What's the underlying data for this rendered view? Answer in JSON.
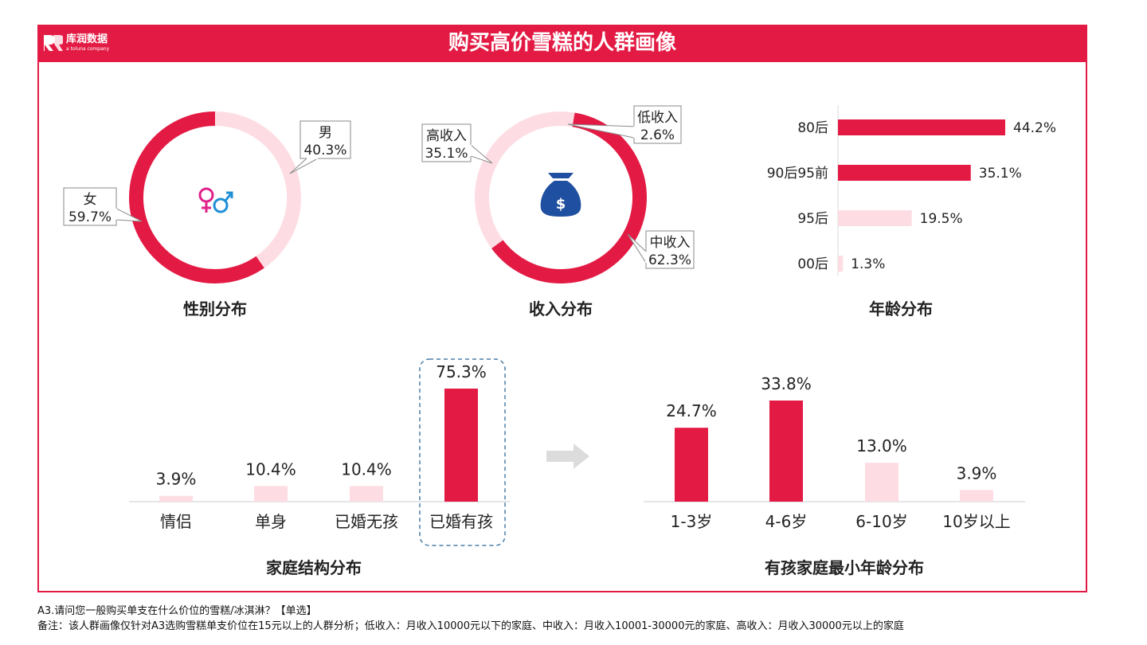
{
  "header": {
    "title": "购买高价雪糕的人群画像",
    "logo_name": "库润数据",
    "logo_sub": "a toluna company"
  },
  "colors": {
    "accent": "#e31b44",
    "light": "#fddde3",
    "callout_border": "#8a8a8a",
    "dash_border": "#4a7fa8",
    "icon_gender_female": "#e0218a",
    "icon_gender_male": "#1f8fd6",
    "icon_money": "#1f4fa0"
  },
  "icons": {
    "gender": "gender-icon",
    "money": "money-bag-icon",
    "arrow": "arrow-right-icon"
  },
  "chart_data": [
    {
      "type": "pie",
      "title": "性别分布",
      "slices": [
        {
          "label": "男",
          "value": 40.3,
          "display": "40.3%",
          "color": "#fddde3"
        },
        {
          "label": "女",
          "value": 59.7,
          "display": "59.7%",
          "color": "#e31b44"
        }
      ]
    },
    {
      "type": "pie",
      "title": "收入分布",
      "slices": [
        {
          "label": "低收入",
          "value": 2.6,
          "display": "2.6%",
          "color": "#fddde3"
        },
        {
          "label": "中收入",
          "value": 62.3,
          "display": "62.3%",
          "color": "#e31b44"
        },
        {
          "label": "高收入",
          "value": 35.1,
          "display": "35.1%",
          "color": "#fddde3"
        }
      ]
    },
    {
      "type": "bar",
      "orientation": "horizontal",
      "title": "年龄分布",
      "categories": [
        "80后",
        "90后95前",
        "95后",
        "00后"
      ],
      "values": [
        44.2,
        35.1,
        19.5,
        1.3
      ],
      "labels": [
        "44.2%",
        "35.1%",
        "19.5%",
        "1.3%"
      ],
      "colors": [
        "#e31b44",
        "#e31b44",
        "#fddde3",
        "#fddde3"
      ]
    },
    {
      "type": "bar",
      "title": "家庭结构分布",
      "categories": [
        "情侣",
        "单身",
        "已婚无孩",
        "已婚有孩"
      ],
      "values": [
        3.9,
        10.4,
        10.4,
        75.3
      ],
      "labels": [
        "3.9%",
        "10.4%",
        "10.4%",
        "75.3%"
      ],
      "colors": [
        "#fddde3",
        "#fddde3",
        "#fddde3",
        "#e31b44"
      ],
      "highlight": "已婚有孩"
    },
    {
      "type": "bar",
      "title": "有孩家庭最小年龄分布",
      "categories": [
        "1-3岁",
        "4-6岁",
        "6-10岁",
        "10岁以上"
      ],
      "values": [
        24.7,
        33.8,
        13.0,
        3.9
      ],
      "labels": [
        "24.7%",
        "33.8%",
        "13.0%",
        "3.9%"
      ],
      "colors": [
        "#e31b44",
        "#e31b44",
        "#fddde3",
        "#fddde3"
      ]
    }
  ],
  "footnotes": {
    "question": "A3.请问您一般购买单支在什么价位的雪糕/冰淇淋？【单选】",
    "remark": "备注：该人群画像仅针对A3选购雪糕单支价位在15元以上的人群分析；低收入：月收入10000元以下的家庭、中收入：月收入10001-30000元的家庭、高收入：月收入30000元以上的家庭"
  }
}
